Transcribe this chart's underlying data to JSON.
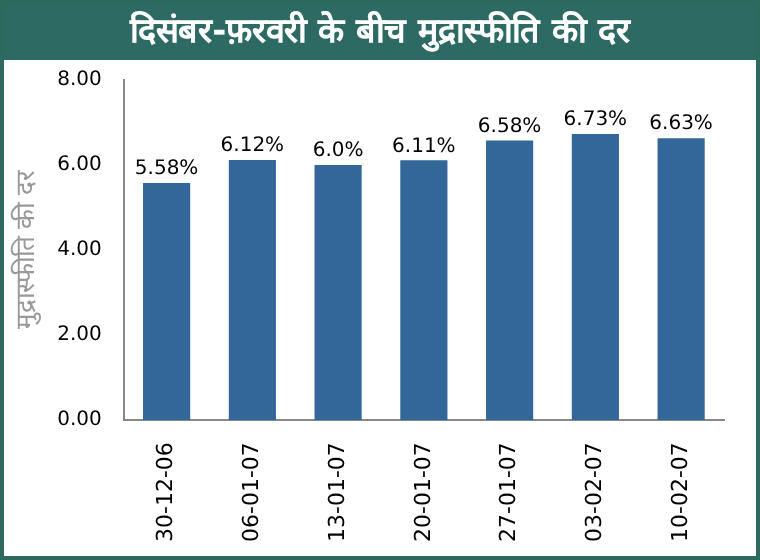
{
  "chart_data": {
    "type": "bar",
    "title": "दिसंबर-फ़रवरी के बीच मुद्रास्फीति की दर",
    "ylabel": "मुद्रास्फीति की दर",
    "categories": [
      "30-12-06",
      "06-01-07",
      "13-01-07",
      "20-01-07",
      "27-01-07",
      "03-02-07",
      "10-02-07"
    ],
    "values": [
      5.58,
      6.12,
      6.0,
      6.11,
      6.58,
      6.73,
      6.63
    ],
    "value_labels": [
      "5.58%",
      "6.12%",
      "6.0%",
      "6.11%",
      "6.58%",
      "6.73%",
      "6.63%"
    ],
    "color": "#336699",
    "ylim": [
      0,
      8
    ],
    "yticks": [
      {
        "value": 0,
        "label": "0.00"
      },
      {
        "value": 2,
        "label": "2.00"
      },
      {
        "value": 4,
        "label": "4.00"
      },
      {
        "value": 6,
        "label": "6.00"
      },
      {
        "value": 8,
        "label": "8.00"
      }
    ],
    "grid": false,
    "legend": false
  }
}
